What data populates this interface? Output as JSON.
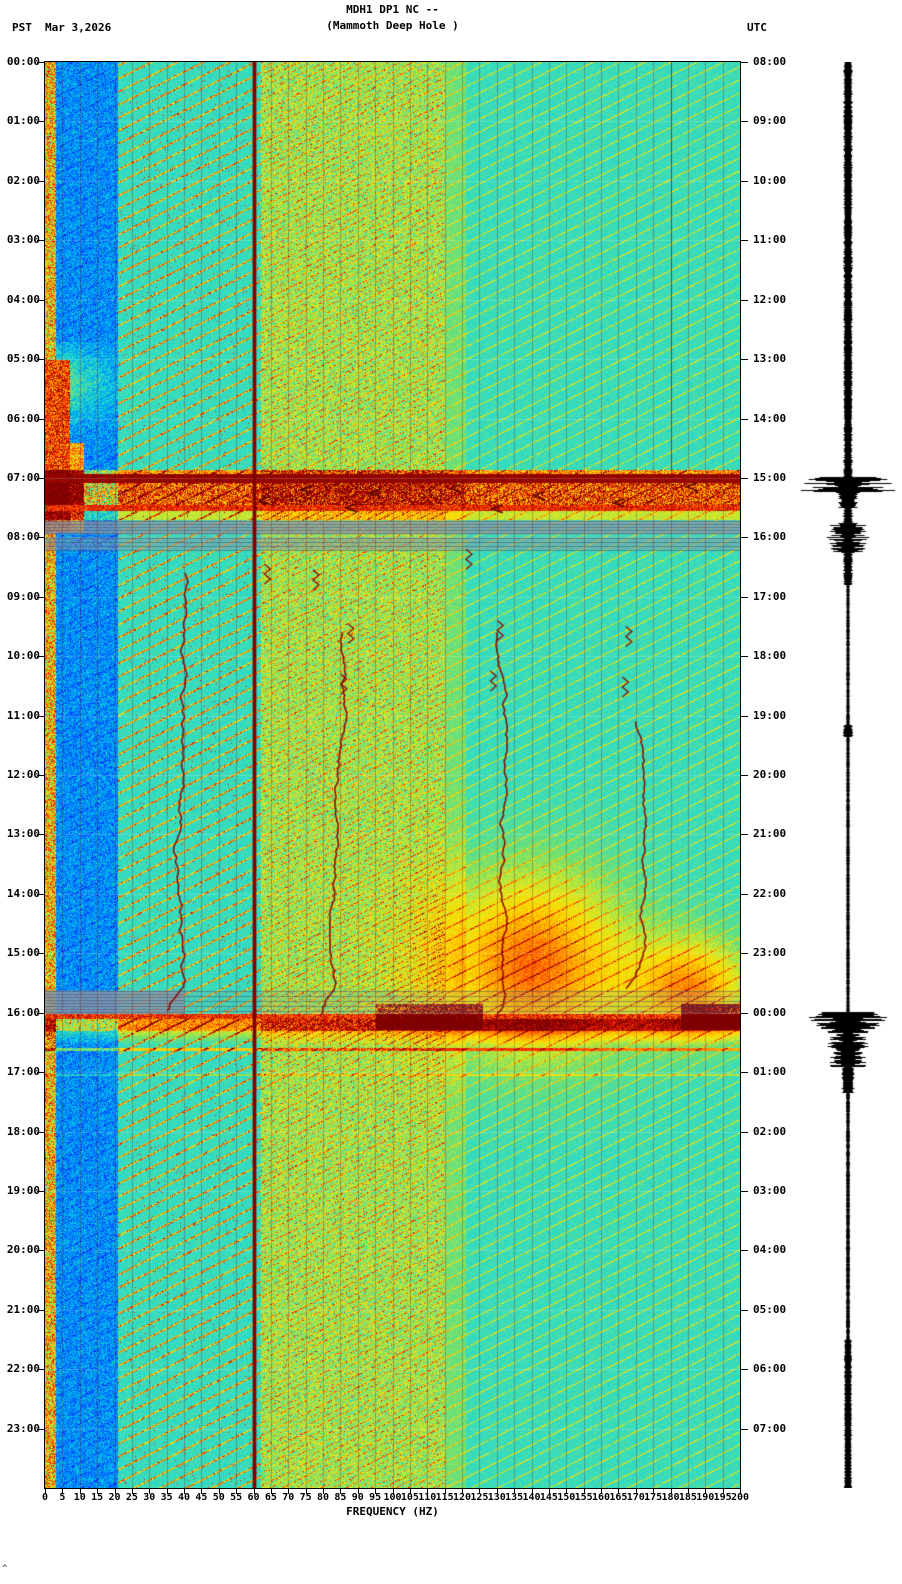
{
  "header": {
    "title_line1": "MDH1 DP1 NC --",
    "title_line2": "(Mammoth Deep Hole )",
    "left_timezone": "PST",
    "date": "Mar 3,2026",
    "right_timezone": "UTC"
  },
  "footer": {
    "stray_glyph": "^"
  },
  "chart_data": {
    "type": "heatmap",
    "subtype": "24-hour seismic spectrogram with helicorder amplitude strip",
    "title": "MDH1 DP1 NC -- (Mammoth Deep Hole )",
    "xlabel": "FREQUENCY (HZ)",
    "ylabel_left": "PST",
    "ylabel_right": "UTC",
    "x_range_hz": [
      0,
      200
    ],
    "x_tick_step_hz": 5,
    "x_tick_labels": [
      "0",
      "5",
      "10",
      "15",
      "20",
      "25",
      "30",
      "35",
      "40",
      "45",
      "50",
      "55",
      "60",
      "65",
      "70",
      "75",
      "80",
      "85",
      "90",
      "95",
      "100",
      "105",
      "110",
      "115",
      "120",
      "125",
      "130",
      "135",
      "140",
      "145",
      "150",
      "155",
      "160",
      "165",
      "170",
      "175",
      "180",
      "185",
      "190",
      "195",
      "200"
    ],
    "duration_hours": 24,
    "left_axis": {
      "timezone": "PST",
      "labels": [
        "00:00",
        "01:00",
        "02:00",
        "03:00",
        "04:00",
        "05:00",
        "06:00",
        "07:00",
        "08:00",
        "09:00",
        "10:00",
        "11:00",
        "12:00",
        "13:00",
        "14:00",
        "15:00",
        "16:00",
        "17:00",
        "18:00",
        "19:00",
        "20:00",
        "21:00",
        "22:00",
        "23:00"
      ]
    },
    "right_axis": {
      "timezone": "UTC",
      "labels": [
        "08:00",
        "09:00",
        "10:00",
        "11:00",
        "12:00",
        "13:00",
        "14:00",
        "15:00",
        "16:00",
        "17:00",
        "18:00",
        "19:00",
        "20:00",
        "21:00",
        "22:00",
        "23:00",
        "00:00",
        "01:00",
        "02:00",
        "03:00",
        "04:00",
        "05:00",
        "06:00",
        "07:00"
      ]
    },
    "palette_stops": [
      {
        "v": 0.0,
        "c": "#000080"
      },
      {
        "v": 0.14,
        "c": "#0020FF"
      },
      {
        "v": 0.28,
        "c": "#0090FF"
      },
      {
        "v": 0.38,
        "c": "#00C8E0"
      },
      {
        "v": 0.46,
        "c": "#30DCCC"
      },
      {
        "v": 0.55,
        "c": "#6FE06E"
      },
      {
        "v": 0.62,
        "c": "#C8E832"
      },
      {
        "v": 0.7,
        "c": "#FFE000"
      },
      {
        "v": 0.8,
        "c": "#FF8C00"
      },
      {
        "v": 0.88,
        "c": "#FF2000"
      },
      {
        "v": 1.0,
        "c": "#7E0000"
      }
    ],
    "power_line_hz": 60,
    "grid_line_spacing_hz": 5,
    "extra_dark_line_hz": 180,
    "background_zones": [
      {
        "hz": [
          0,
          3
        ],
        "character": "mixed green-yellow-red edge column"
      },
      {
        "hz": [
          3,
          21
        ],
        "character": "deep blue speckle"
      },
      {
        "hz": [
          21,
          62
        ],
        "character": "turquoise with diagonal yellow-red harmonic streaks"
      },
      {
        "hz": [
          62,
          115
        ],
        "character": "green-yellow dense speckle with red flecks"
      },
      {
        "hz": [
          115,
          200
        ],
        "character": "turquoise with faint diagonal streaks"
      }
    ],
    "drifting_spectral_lines": [
      {
        "hz": 40,
        "pst_start": 8.6,
        "pst_end": 16.0
      },
      {
        "hz": 85,
        "pst_start": 9.6,
        "pst_end": 16.1
      },
      {
        "hz": 130,
        "pst_start": 9.6,
        "pst_end": 16.25
      },
      {
        "hz": 170,
        "pst_start": 11.1,
        "pst_end": 15.6
      }
    ],
    "squiggle_marks_hz_pst": [
      [
        64,
        8.45
      ],
      [
        78,
        8.55
      ],
      [
        88,
        9.45
      ],
      [
        131,
        9.4
      ],
      [
        168,
        9.5
      ],
      [
        86,
        10.3
      ],
      [
        129,
        10.25
      ],
      [
        167,
        10.35
      ],
      [
        122,
        8.2
      ]
    ],
    "arrow_marks_hz_pst": [
      [
        75,
        7.2
      ],
      [
        95,
        7.25
      ],
      [
        118,
        7.18
      ],
      [
        142,
        7.3
      ],
      [
        186,
        7.15
      ],
      [
        88,
        7.5
      ],
      [
        130,
        7.52
      ],
      [
        63,
        7.38
      ],
      [
        165,
        7.42
      ]
    ],
    "events": [
      {
        "pst": "07:00",
        "utc": "15:00",
        "kind": "broadband dark-red band with red/orange noise tail"
      },
      {
        "pst": "07:45",
        "utc": "15:45",
        "kind": "gray telemetry band"
      },
      {
        "pst": "08:05",
        "utc": "16:05",
        "kind": "gray telemetry band"
      },
      {
        "pst": "15:40",
        "utc": "23:40",
        "kind": "gray band strongest below 40 Hz"
      },
      {
        "pst": "16:00",
        "utc": "00:00",
        "kind": "broadband red band with orange noise tail"
      }
    ],
    "orange_clouds": [
      {
        "hz_center": 140,
        "hz_sigma": 20,
        "pst_center": 15.2,
        "pst_sigma": 1.1,
        "gain": 0.35
      },
      {
        "hz_center": 186,
        "hz_sigma": 12,
        "pst_center": 15.6,
        "pst_sigma": 0.6,
        "gain": 0.3
      }
    ],
    "helicorder": {
      "color": "#000000",
      "segments": [
        {
          "t0": 0,
          "t1": 6.98,
          "base": 3,
          "jitter": 1.6
        },
        {
          "t0": 6.98,
          "t1": 7.25,
          "base": 18,
          "jitter": 10
        },
        {
          "t0": 7.25,
          "t1": 7.5,
          "base": 6,
          "jitter": 4
        },
        {
          "t0": 7.5,
          "t1": 7.75,
          "base": 3,
          "jitter": 2
        },
        {
          "t0": 7.75,
          "t1": 8.25,
          "base": 9,
          "jitter": 7
        },
        {
          "t0": 8.25,
          "t1": 8.8,
          "base": 3,
          "jitter": 2
        },
        {
          "t0": 8.8,
          "t1": 11.15,
          "base": 1.2,
          "jitter": 0.7
        },
        {
          "t0": 11.15,
          "t1": 11.35,
          "base": 3.5,
          "jitter": 2
        },
        {
          "t0": 11.35,
          "t1": 15.98,
          "base": 1.2,
          "jitter": 0.7
        },
        {
          "t0": 15.98,
          "t1": 16.3,
          "base": 20,
          "jitter": 10
        },
        {
          "t0": 16.3,
          "t1": 16.9,
          "base": 10,
          "jitter": 6
        },
        {
          "t0": 16.9,
          "t1": 17.35,
          "base": 4,
          "jitter": 2.5
        },
        {
          "t0": 17.35,
          "t1": 21.5,
          "base": 1.3,
          "jitter": 0.8
        },
        {
          "t0": 21.5,
          "t1": 24,
          "base": 2.6,
          "jitter": 1.3
        }
      ]
    }
  }
}
